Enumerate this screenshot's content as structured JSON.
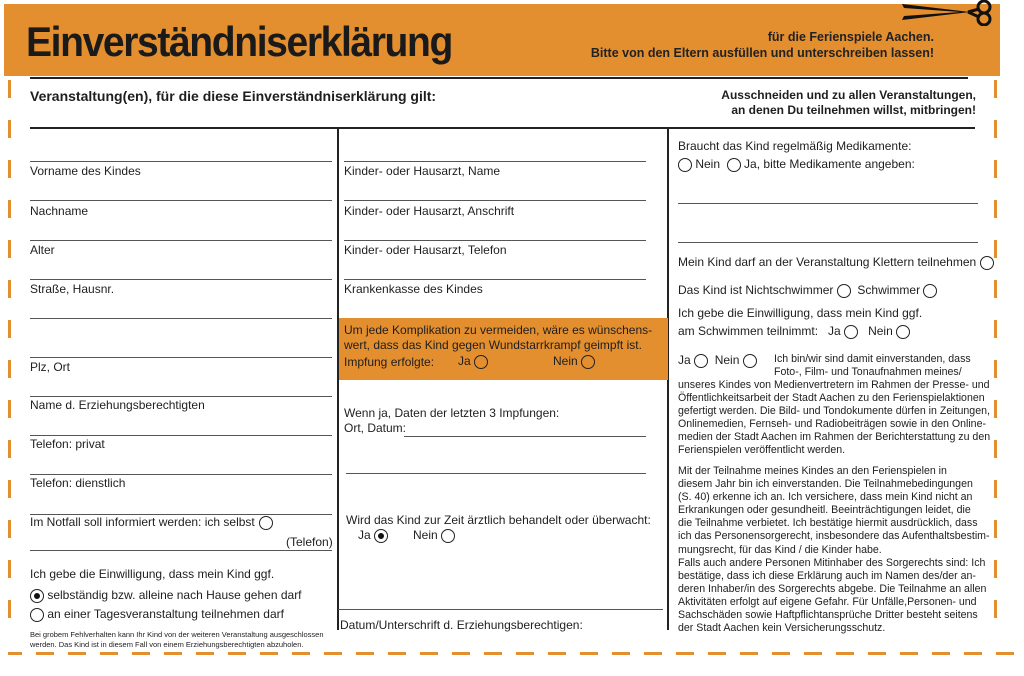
{
  "header": {
    "title": "Einverständniserklärung",
    "subtitle_1": "für die Ferienspiele Aachen.",
    "subtitle_2": "Bitte von den Eltern ausfüllen und unterschreiben lassen!",
    "icon": "scissors-icon",
    "accent": "#e38f2f"
  },
  "event": {
    "label": "Veranstaltung(en), für die diese Einverständniserklärung gilt:",
    "note_1": "Ausschneiden und zu allen Veranstaltungen,",
    "note_2": "an denen Du teilnehmen willst, mitbringen!"
  },
  "left": {
    "fields": [
      "Vorname des Kindes",
      "Nachname",
      "Alter",
      "Straße, Hausnr.",
      "Plz, Ort",
      "Name d. Erziehungsberechtigten",
      "Telefon: privat",
      "Telefon: dienstlich",
      "Im Notfall soll informiert werden: ich selbst"
    ],
    "telefon": "(Telefon)",
    "consent_intro": "Ich gebe die Einwilligung, dass mein Kind ggf.",
    "option_1": "selbständig bzw. alleine nach Hause gehen darf",
    "option_2": "an einer Tagesveranstaltung teilnehmen darf",
    "option_1_selected": true,
    "note_1": "Bei grobem Fehlverhalten kann Ihr Kind von der weiteren Veranstaltung ausgeschlossen",
    "note_2": "werden. Das Kind ist in diesem Fall von einem Erziehungsberechtigten abzuholen."
  },
  "middle": {
    "fields": [
      "Kinder- oder Hausarzt, Name",
      "Kinder- oder Hausarzt, Anschrift",
      "Kinder- oder Hausarzt, Telefon",
      "Krankenkasse des Kindes"
    ],
    "tetanus_1": "Um jede Komplikation zu vermeiden, wäre es wünschens-",
    "tetanus_2": "wert, dass das Kind gegen Wundstarrkrampf geimpft ist.",
    "impfung": "Impfung erfolgte:",
    "ja": "Ja",
    "nein": "Nein",
    "last_1": "Wenn ja, Daten der letzten 3 Impfungen:",
    "last_2": "Ort, Datum:",
    "treatment": "Wird das Kind zur Zeit ärztlich behandelt oder überwacht:",
    "treatment_ja_selected": true,
    "signature": "Datum/Unterschrift d. Erziehungsberechtigen:"
  },
  "right": {
    "medication": "Braucht das Kind regelmäßig Medikamente:",
    "nein": "Nein",
    "ja_meds": "Ja, bitte Medikamente angeben:",
    "climbing": "Mein Kind darf an der Veranstaltung Klettern teilnehmen",
    "nonswimmer": "Das Kind ist Nichtschwimmer",
    "swimmer": "Schwimmer",
    "swim_1": "Ich gebe die Einwilligung, dass mein Kind ggf.",
    "swim_2": "am Schwimmen teilnimmt:",
    "ja": "Ja",
    "media_first_1": "Ich bin/wir sind damit einverstanden, dass",
    "media_first_2": "Foto-, Film- und Tonaufnahmen meines/",
    "media_rest": [
      "unseres Kindes von Medienvertretern im Rahmen der Presse- und",
      "Öffentlichkeitsarbeit der Stadt Aachen zu den Ferienspielaktionen",
      "gefertigt werden. Die Bild- und Tondokumente dürfen in Zeitungen,",
      "Onlinemedien, Fernseh- und Radiobeiträgen sowie in den Online-",
      "medien der Stadt Aachen im Rahmen der Berichterstattung zu den",
      "Ferienspielen veröffentlicht werden."
    ],
    "terms": [
      "Mit der Teilnahme meines Kindes an den Ferienspielen in",
      "diesem Jahr bin ich einverstanden. Die Teilnahmebedingungen",
      "(S. 40) erkenne ich an. Ich versichere, dass mein Kind nicht an",
      "Erkrankungen oder gesundheitl. Beeinträchtigungen leidet, die",
      "die Teilnahme verbietet. Ich bestätige hiermit ausdrücklich, dass",
      "ich das Personensorgerecht, insbesondere das Aufenthaltsbestim-",
      "mungsrecht, für das Kind / die Kinder habe.",
      "Falls auch andere Personen Mitinhaber des Sorgerechts sind: Ich",
      "bestätige, dass ich diese Erklärung auch im Namen des/der an-",
      "deren Inhaber/in des Sorgerechts abgebe. Die Teilnahme an allen",
      "Aktivitäten erfolgt auf eigene Gefahr. Für Unfälle,Personen- und",
      "Sachschäden sowie Haftpflichtansprüche Dritter besteht seitens",
      "der Stadt Aachen kein Versicherungsschutz."
    ]
  }
}
